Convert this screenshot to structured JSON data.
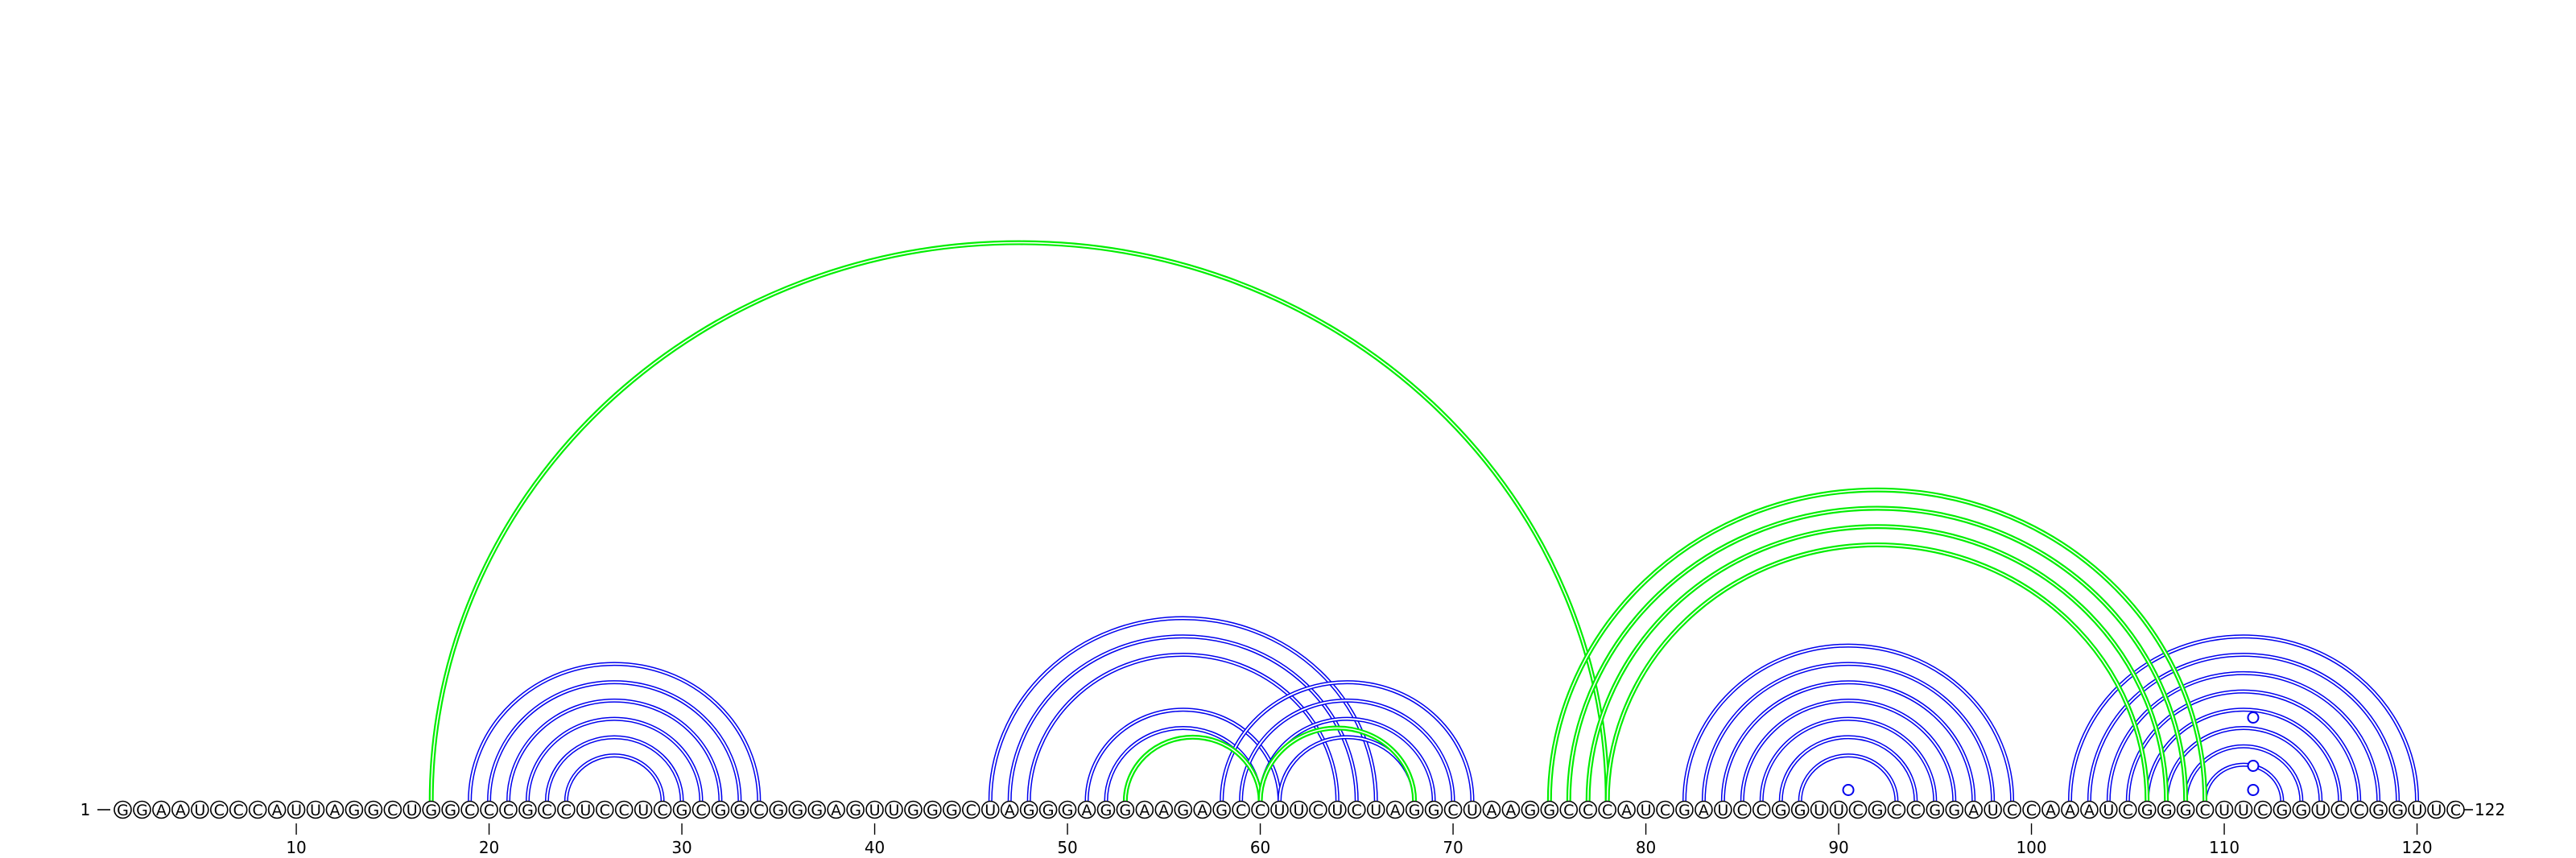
{
  "diagram": {
    "sequence": "GGAAUCCCAUUAGGCUGGCCCGCCUCCUCGCGGCGGGAGUUGGGCUAGGGAGGAAGAGCCUUCUCUAGGCUAAGGCCCAUCGAUCCGGUUCGCCGGAUCCAAAUCGGGCUUCGGUCCGGUUC",
    "start_label": "1",
    "end_label": "122",
    "tick_labels": [
      "10",
      "20",
      "30",
      "40",
      "50",
      "60",
      "70",
      "80",
      "90",
      "100",
      "110",
      "120"
    ],
    "colors": {
      "blue_pair": "#0000ee",
      "green_pair": "#00ee00"
    },
    "base_pairs": [
      {
        "i": 19,
        "j": 34,
        "group": "blue"
      },
      {
        "i": 20,
        "j": 33,
        "group": "blue"
      },
      {
        "i": 21,
        "j": 32,
        "group": "blue"
      },
      {
        "i": 22,
        "j": 31,
        "group": "blue"
      },
      {
        "i": 23,
        "j": 30,
        "group": "blue"
      },
      {
        "i": 24,
        "j": 29,
        "group": "blue"
      },
      {
        "i": 46,
        "j": 66,
        "group": "blue"
      },
      {
        "i": 47,
        "j": 65,
        "group": "blue"
      },
      {
        "i": 48,
        "j": 64,
        "group": "blue"
      },
      {
        "i": 51,
        "j": 61,
        "group": "blue"
      },
      {
        "i": 52,
        "j": 60,
        "group": "blue"
      },
      {
        "i": 58,
        "j": 71,
        "group": "blue"
      },
      {
        "i": 59,
        "j": 70,
        "group": "blue"
      },
      {
        "i": 60,
        "j": 69,
        "group": "blue"
      },
      {
        "i": 61,
        "j": 68,
        "group": "blue"
      },
      {
        "i": 82,
        "j": 99,
        "group": "blue"
      },
      {
        "i": 83,
        "j": 98,
        "group": "blue"
      },
      {
        "i": 84,
        "j": 97,
        "group": "blue"
      },
      {
        "i": 85,
        "j": 96,
        "group": "blue"
      },
      {
        "i": 86,
        "j": 95,
        "group": "blue"
      },
      {
        "i": 87,
        "j": 94,
        "group": "blue"
      },
      {
        "i": 88,
        "j": 93,
        "group": "blue"
      },
      {
        "i": 102,
        "j": 120,
        "group": "blue"
      },
      {
        "i": 103,
        "j": 119,
        "group": "blue"
      },
      {
        "i": 104,
        "j": 118,
        "group": "blue"
      },
      {
        "i": 105,
        "j": 117,
        "group": "blue"
      },
      {
        "i": 106,
        "j": 116,
        "group": "blue"
      },
      {
        "i": 107,
        "j": 115,
        "group": "blue"
      },
      {
        "i": 108,
        "j": 114,
        "group": "blue"
      },
      {
        "i": 109,
        "j": 113,
        "group": "blue"
      },
      {
        "i": 17,
        "j": 78,
        "group": "green"
      },
      {
        "i": 53,
        "j": 60,
        "group": "green"
      },
      {
        "i": 60,
        "j": 68,
        "group": "green"
      },
      {
        "i": 75,
        "j": 109,
        "group": "green"
      },
      {
        "i": 76,
        "j": 108,
        "group": "green"
      },
      {
        "i": 77,
        "j": 107,
        "group": "green"
      },
      {
        "i": 78,
        "j": 106,
        "group": "green"
      }
    ],
    "loop_markers": [
      {
        "pos": 90.5,
        "level": 1
      },
      {
        "pos": 111.5,
        "level": 1
      },
      {
        "pos": 111.5,
        "level": 2
      },
      {
        "pos": 111.5,
        "level": 4
      }
    ]
  }
}
